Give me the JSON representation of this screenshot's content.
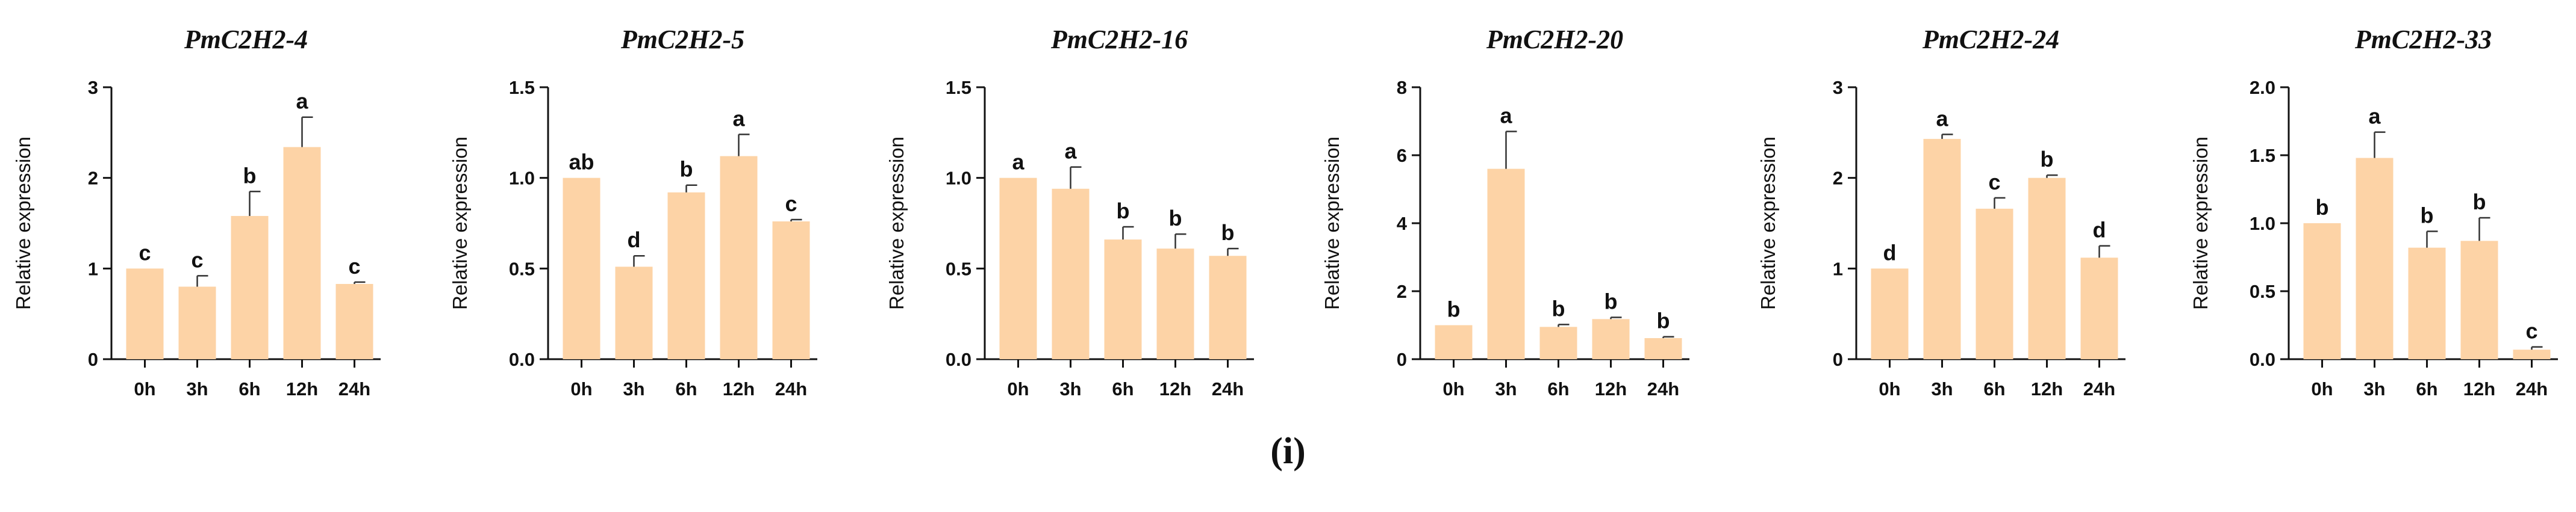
{
  "figure_label": "(i)",
  "colors": {
    "bar": "#FDD3A6",
    "axis": "#111111",
    "text": "#111111"
  },
  "chart_data": [
    {
      "type": "bar",
      "title": "PmC2H2-4",
      "ylabel": "Relative expression",
      "xlabel": "",
      "categories": [
        "0h",
        "3h",
        "6h",
        "12h",
        "24h"
      ],
      "values": [
        1.0,
        0.8,
        1.58,
        2.34,
        0.83
      ],
      "errors": [
        0.0,
        0.12,
        0.27,
        0.33,
        0.02
      ],
      "significance": [
        "c",
        "c",
        "b",
        "a",
        "c"
      ],
      "ylim": [
        0,
        3
      ],
      "yticks": [
        "0",
        "1",
        "2",
        "3"
      ]
    },
    {
      "type": "bar",
      "title": "PmC2H2-5",
      "ylabel": "Relative expression",
      "xlabel": "",
      "categories": [
        "0h",
        "3h",
        "6h",
        "12h",
        "24h"
      ],
      "values": [
        1.0,
        0.51,
        0.92,
        1.12,
        0.76
      ],
      "errors": [
        0.0,
        0.06,
        0.04,
        0.12,
        0.01
      ],
      "significance": [
        "ab",
        "d",
        "b",
        "a",
        "c"
      ],
      "ylim": [
        0,
        1.5
      ],
      "yticks": [
        "0.0",
        "0.5",
        "1.0",
        "1.5"
      ]
    },
    {
      "type": "bar",
      "title": "PmC2H2-16",
      "ylabel": "Relative expression",
      "xlabel": "",
      "categories": [
        "0h",
        "3h",
        "6h",
        "12h",
        "24h"
      ],
      "values": [
        1.0,
        0.94,
        0.66,
        0.61,
        0.57
      ],
      "errors": [
        0.0,
        0.12,
        0.07,
        0.08,
        0.04
      ],
      "significance": [
        "a",
        "a",
        "b",
        "b",
        "b"
      ],
      "ylim": [
        0,
        1.5
      ],
      "yticks": [
        "0.0",
        "0.5",
        "1.0",
        "1.5"
      ]
    },
    {
      "type": "bar",
      "title": "PmC2H2-20",
      "ylabel": "Relative expression",
      "xlabel": "",
      "categories": [
        "0h",
        "3h",
        "6h",
        "12h",
        "24h"
      ],
      "values": [
        1.0,
        5.6,
        0.95,
        1.18,
        0.62
      ],
      "errors": [
        0.0,
        1.1,
        0.07,
        0.05,
        0.04
      ],
      "significance": [
        "b",
        "a",
        "b",
        "b",
        "b"
      ],
      "ylim": [
        0,
        8
      ],
      "yticks": [
        "0",
        "2",
        "4",
        "6",
        "8"
      ]
    },
    {
      "type": "bar",
      "title": "PmC2H2-24",
      "ylabel": "Relative expression",
      "xlabel": "",
      "categories": [
        "0h",
        "3h",
        "6h",
        "12h",
        "24h"
      ],
      "values": [
        1.0,
        2.43,
        1.66,
        2.0,
        1.12
      ],
      "errors": [
        0.0,
        0.05,
        0.12,
        0.03,
        0.13
      ],
      "significance": [
        "d",
        "a",
        "c",
        "b",
        "d"
      ],
      "ylim": [
        0,
        3
      ],
      "yticks": [
        "0",
        "1",
        "2",
        "3"
      ]
    },
    {
      "type": "bar",
      "title": "PmC2H2-33",
      "ylabel": "Relative expression",
      "xlabel": "",
      "categories": [
        "0h",
        "3h",
        "6h",
        "12h",
        "24h"
      ],
      "values": [
        1.0,
        1.48,
        0.82,
        0.87,
        0.07
      ],
      "errors": [
        0.0,
        0.19,
        0.12,
        0.17,
        0.02
      ],
      "significance": [
        "b",
        "a",
        "b",
        "b",
        "c"
      ],
      "ylim": [
        0,
        2.0
      ],
      "yticks": [
        "0.0",
        "0.5",
        "1.0",
        "1.5",
        "2.0"
      ]
    }
  ]
}
